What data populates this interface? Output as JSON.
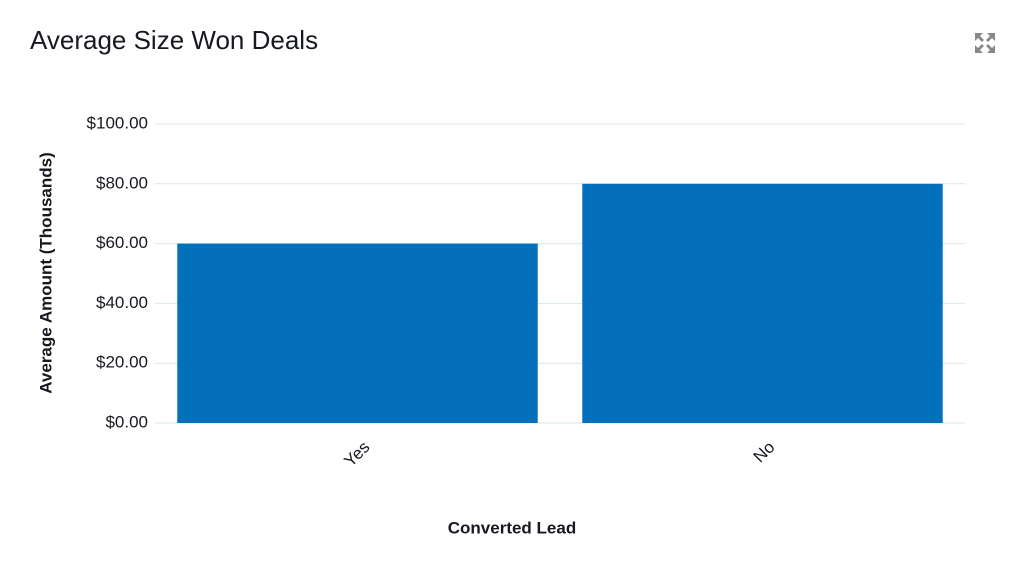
{
  "chart_data": {
    "type": "bar",
    "title": "Average Size Won Deals",
    "x_label": "Converted Lead",
    "y_label": "Average Amount (Thousands)",
    "categories": [
      "Yes",
      "No"
    ],
    "values": [
      60,
      80
    ],
    "color": "#0470bb",
    "ylim": [
      0,
      100
    ],
    "yticks": [
      {
        "value": 0,
        "label": "$0.00"
      },
      {
        "value": 20,
        "label": "$20.00"
      },
      {
        "value": 40,
        "label": "$40.00"
      },
      {
        "value": 60,
        "label": "$60.00"
      },
      {
        "value": 80,
        "label": "$80.00"
      },
      {
        "value": 100,
        "label": "$100.00"
      }
    ],
    "grid": true
  }
}
